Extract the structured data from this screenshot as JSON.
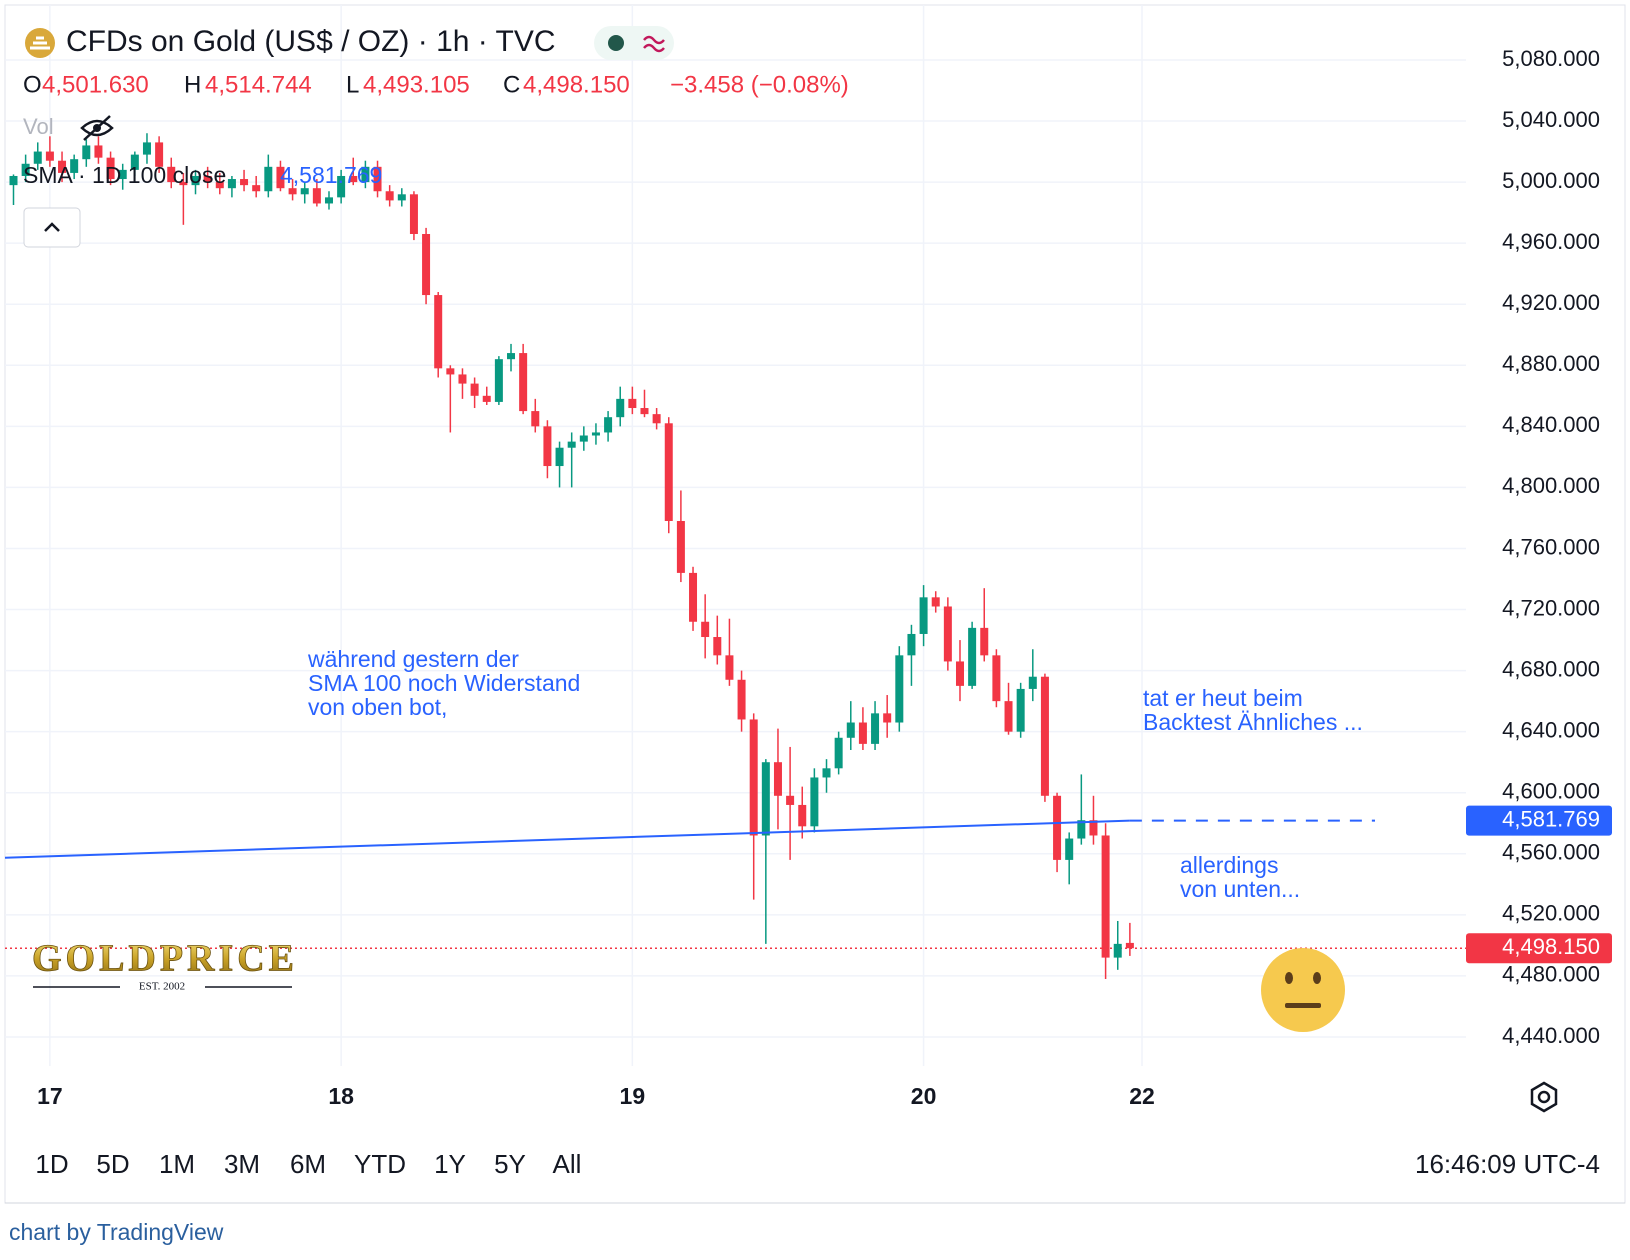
{
  "chart_data": {
    "type": "candlestick",
    "title": "CFDs on Gold (US$ / OZ) · 1h · TVC",
    "ohlc_labels": [
      {
        "key": "O",
        "value": "4,501.630"
      },
      {
        "key": "H",
        "value": "4,514.744"
      },
      {
        "key": "L",
        "value": "4,493.105"
      },
      {
        "key": "C",
        "value": "4,498.150"
      }
    ],
    "change": "−3.458 (−0.08%)",
    "volume_label": "Vol",
    "up_color": "#089981",
    "down_color": "#f23645",
    "x": [
      -3,
      -2,
      -1,
      0,
      1,
      2,
      3,
      4,
      5,
      6,
      7,
      8,
      9,
      10,
      11,
      12,
      13,
      14,
      15,
      16,
      17,
      18,
      19,
      20,
      21,
      22,
      23,
      24,
      25,
      26,
      27,
      28,
      29,
      30,
      31,
      32,
      33,
      34,
      35,
      36,
      37,
      38,
      39,
      40,
      41,
      42,
      43,
      44,
      45,
      46,
      47,
      48,
      49,
      50,
      51,
      52,
      53,
      54,
      55,
      56,
      57,
      58,
      59,
      60,
      61,
      62,
      63,
      64,
      65,
      66,
      67,
      68,
      69,
      70,
      71,
      72,
      73,
      74,
      75,
      76,
      77,
      78,
      79,
      80,
      81,
      82,
      83,
      84,
      85,
      86,
      87,
      88,
      89
    ],
    "open": [
      4998,
      5004,
      5012,
      5020,
      5014,
      5006,
      5015,
      5024,
      5016,
      5002,
      5008,
      5018,
      5026,
      5010,
      5000,
      4998,
      5004,
      5000,
      4996,
      5002,
      4998,
      4994,
      5010,
      4996,
      4992,
      4996,
      4986,
      4990,
      5004,
      5000,
      5010,
      4994,
      4988,
      4992,
      4966,
      4926,
      4878,
      4874,
      4868,
      4860,
      4856,
      4884,
      4888,
      4850,
      4840,
      4814,
      4826,
      4830,
      4834,
      4836,
      4846,
      4858,
      4852,
      4848,
      4842,
      4778,
      4744,
      4712,
      4702,
      4690,
      4674,
      4648,
      4572,
      4620,
      4598,
      4592,
      4578,
      4610,
      4616,
      4636,
      4646,
      4632,
      4652,
      4646,
      4690,
      4704,
      4728,
      4722,
      4686,
      4670,
      4708,
      4690,
      4660,
      4640,
      4668,
      4676,
      4598,
      4556,
      4570,
      4582,
      4572,
      4492,
      4501.63
    ],
    "high": [
      5005,
      5018,
      5026,
      5030,
      5020,
      5018,
      5028,
      5030,
      5020,
      5012,
      5020,
      5032,
      5030,
      5016,
      5006,
      5008,
      5010,
      5006,
      5004,
      5008,
      5004,
      5018,
      5014,
      5002,
      5000,
      5002,
      4994,
      5008,
      5016,
      5014,
      5014,
      4998,
      4996,
      4994,
      4970,
      4928,
      4880,
      4878,
      4872,
      4866,
      4886,
      4894,
      4894,
      4858,
      4844,
      4830,
      4836,
      4840,
      4842,
      4850,
      4866,
      4866,
      4864,
      4852,
      4846,
      4798,
      4748,
      4730,
      4716,
      4714,
      4680,
      4652,
      4622,
      4642,
      4630,
      4604,
      4616,
      4622,
      4640,
      4660,
      4656,
      4660,
      4664,
      4696,
      4710,
      4736,
      4732,
      4728,
      4700,
      4712,
      4734,
      4694,
      4672,
      4672,
      4694,
      4678,
      4600,
      4574,
      4612,
      4598,
      4580,
      4516,
      4514.744
    ],
    "low": [
      4985,
      5000,
      5008,
      5010,
      5000,
      5002,
      5010,
      5012,
      4998,
      4995,
      5004,
      5012,
      5006,
      4996,
      4972,
      4992,
      4996,
      4992,
      4990,
      4994,
      4990,
      4990,
      4994,
      4988,
      4986,
      4984,
      4982,
      4986,
      4998,
      4996,
      4990,
      4984,
      4984,
      4962,
      4920,
      4872,
      4836,
      4858,
      4852,
      4854,
      4854,
      4876,
      4848,
      4836,
      4806,
      4800,
      4800,
      4824,
      4828,
      4830,
      4840,
      4848,
      4846,
      4838,
      4770,
      4738,
      4706,
      4688,
      4684,
      4670,
      4640,
      4530,
      4501,
      4576,
      4556,
      4570,
      4574,
      4600,
      4612,
      4628,
      4628,
      4628,
      4636,
      4640,
      4670,
      4696,
      4718,
      4680,
      4660,
      4668,
      4686,
      4656,
      4638,
      4636,
      4660,
      4594,
      4548,
      4540,
      4566,
      4566,
      4478,
      4484,
      4493.105
    ],
    "close": [
      5004,
      5012,
      5020,
      5014,
      5006,
      5015,
      5024,
      5016,
      5002,
      5008,
      5018,
      5026,
      5010,
      5000,
      4998,
      5004,
      5000,
      4996,
      5002,
      4998,
      4994,
      5010,
      4996,
      4992,
      4996,
      4986,
      4990,
      5004,
      5000,
      5010,
      4994,
      4988,
      4992,
      4966,
      4926,
      4878,
      4874,
      4868,
      4860,
      4856,
      4884,
      4888,
      4850,
      4840,
      4814,
      4826,
      4830,
      4834,
      4836,
      4846,
      4858,
      4852,
      4848,
      4842,
      4778,
      4744,
      4712,
      4702,
      4690,
      4674,
      4648,
      4572,
      4620,
      4598,
      4592,
      4578,
      4610,
      4616,
      4636,
      4646,
      4632,
      4652,
      4646,
      4690,
      4704,
      4728,
      4722,
      4686,
      4670,
      4708,
      4690,
      4660,
      4640,
      4668,
      4676,
      4598,
      4556,
      4570,
      4582,
      4572,
      4492,
      4501,
      4498.15
    ],
    "xlim": [
      -3.7,
      116.7
    ],
    "xticks": [
      {
        "value": 0,
        "label": "17"
      },
      {
        "value": 24,
        "label": "18"
      },
      {
        "value": 48,
        "label": "19"
      },
      {
        "value": 72,
        "label": "20"
      },
      {
        "value": 90,
        "label": "22"
      }
    ],
    "ylim": [
      4421,
      5116
    ],
    "yticks": [
      {
        "value": 4440,
        "label": "4,440.000"
      },
      {
        "value": 4480,
        "label": "4,480.000"
      },
      {
        "value": 4520,
        "label": "4,520.000"
      },
      {
        "value": 4560,
        "label": "4,560.000"
      },
      {
        "value": 4600,
        "label": "4,600.000"
      },
      {
        "value": 4640,
        "label": "4,640.000"
      },
      {
        "value": 4680,
        "label": "4,680.000"
      },
      {
        "value": 4720,
        "label": "4,720.000"
      },
      {
        "value": 4760,
        "label": "4,760.000"
      },
      {
        "value": 4800,
        "label": "4,800.000"
      },
      {
        "value": 4840,
        "label": "4,840.000"
      },
      {
        "value": 4880,
        "label": "4,880.000"
      },
      {
        "value": 4920,
        "label": "4,920.000"
      },
      {
        "value": 4960,
        "label": "4,960.000"
      },
      {
        "value": 5000,
        "label": "5,000.000"
      },
      {
        "value": 5040,
        "label": "5,040.000"
      },
      {
        "value": 5080,
        "label": "5,080.000"
      }
    ],
    "grid": true,
    "sma": {
      "name": "SMA · 1D 100 close",
      "x": [
        -3.7,
        89
      ],
      "values": [
        4557.4,
        4581.769
      ],
      "value_label": "4,581.769",
      "color": "#2962ff"
    },
    "last_price": {
      "value": 4498.15,
      "label": "4,498.150"
    },
    "annotations": [
      [
        "während gestern der",
        "SMA 100 noch Widerstand",
        "von oben bot,"
      ],
      [
        "tat er heut beim",
        "Backtest Ähnliches ..."
      ],
      [
        "allerdings",
        "von unten..."
      ]
    ],
    "logo": {
      "name": "GOLDPRICE",
      "tagline": "EST. 2002"
    }
  },
  "toolbar": {
    "ranges": [
      "1D",
      "5D",
      "1M",
      "3M",
      "6M",
      "YTD",
      "1Y",
      "5Y",
      "All"
    ],
    "time": "16:46:09 UTC-4"
  },
  "footer": "chart by TradingView"
}
